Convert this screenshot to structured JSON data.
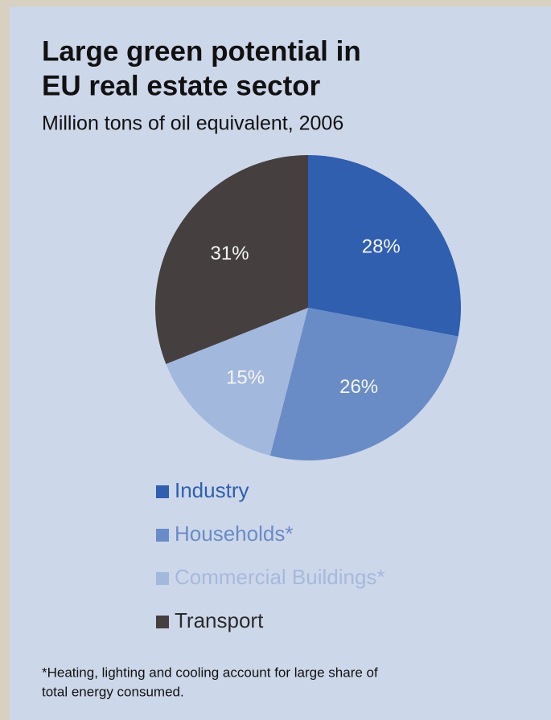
{
  "chart_data": {
    "type": "pie",
    "title": [
      "Large green potential in",
      "EU real estate sector"
    ],
    "subtitle": "Million tons of oil equivalent, 2006",
    "categories": [
      "Industry",
      "Households*",
      "Commercial Buildings*",
      "Transport"
    ],
    "values": [
      28,
      26,
      15,
      31
    ],
    "value_labels": [
      "28%",
      "26%",
      "15%",
      "31%"
    ],
    "colors": [
      "#2f5fae",
      "#6a8cc6",
      "#a3b8dd",
      "#463f3f"
    ],
    "legend_text_colors": [
      "#2f5fae",
      "#6a8cc6",
      "#a6b9dc",
      "#2b2b2b"
    ],
    "footnote": [
      "*Heating, lighting and cooling account for large share of",
      "total energy consumed."
    ]
  }
}
